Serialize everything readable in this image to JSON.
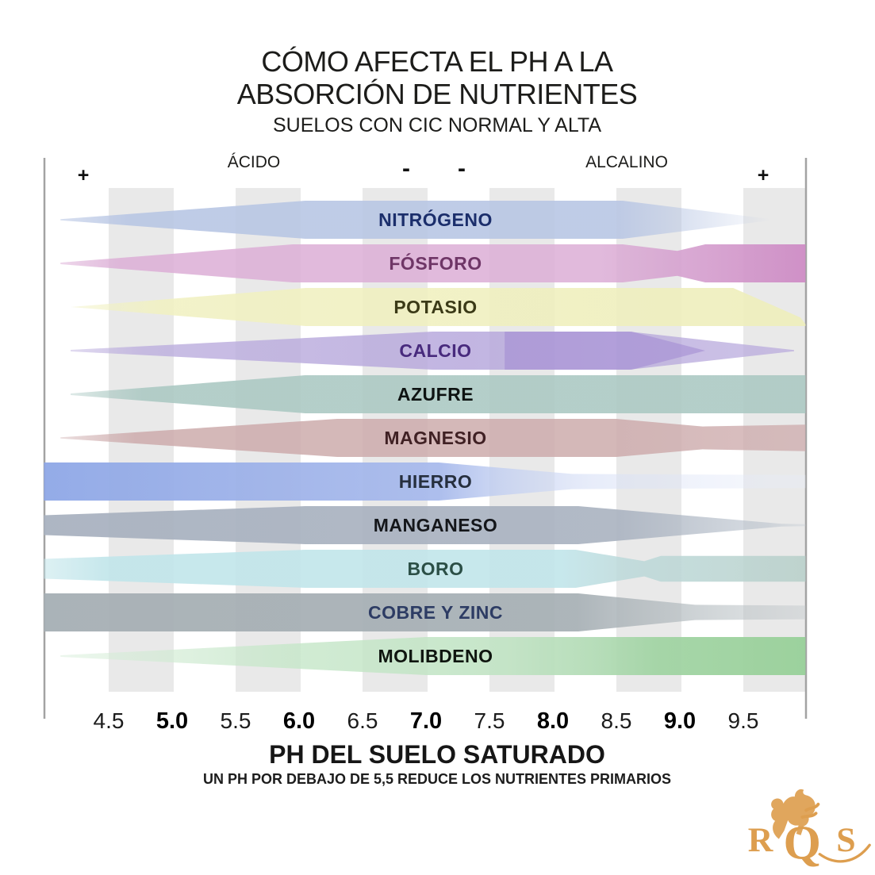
{
  "title": {
    "line1": "CÓMO AFECTA EL PH A LA",
    "line2": "ABSORCIÓN DE NUTRIENTES"
  },
  "subtitle": "SUELOS CON CIC NORMAL Y ALTA",
  "header": {
    "acid_label": "ÁCIDO",
    "alkaline_label": "ALCALINO",
    "plus_left": "+",
    "plus_right": "+",
    "minus_left": "-",
    "minus_right": "-"
  },
  "x_axis": {
    "label": "PH DEL SUELO SATURADO",
    "note": "UN PH POR DEBAJO DE 5,5 REDUCE LOS NUTRIENTES PRIMARIOS",
    "ticks": [
      {
        "label": "4.5",
        "bold": false
      },
      {
        "label": "5.0",
        "bold": true
      },
      {
        "label": "5.5",
        "bold": false
      },
      {
        "label": "6.0",
        "bold": true
      },
      {
        "label": "6.5",
        "bold": false
      },
      {
        "label": "7.0",
        "bold": true
      },
      {
        "label": "7.5",
        "bold": false
      },
      {
        "label": "8.0",
        "bold": true
      },
      {
        "label": "8.5",
        "bold": false
      },
      {
        "label": "9.0",
        "bold": true
      },
      {
        "label": "9.5",
        "bold": false
      }
    ]
  },
  "logo": {
    "letters": [
      "R",
      "Q",
      "S"
    ],
    "color": "#dd9e4f"
  },
  "chart_data": {
    "type": "area",
    "title": "CÓMO AFECTA EL PH A LA ABSORCIÓN DE NUTRIENTES",
    "subtitle": "SUELOS CON CIC NORMAL Y ALTA",
    "xlabel": "PH DEL SUELO SATURADO",
    "note": "UN PH POR DEBAJO DE 5,5 REDUCE LOS NUTRIENTES PRIMARIOS",
    "x_range": [
      4.0,
      10.0
    ],
    "x_tick_values": [
      4.5,
      5.0,
      5.5,
      6.0,
      6.5,
      7.0,
      7.5,
      8.0,
      8.5,
      9.0,
      9.5
    ],
    "zones": {
      "acid": "ÁCIDO",
      "alkaline": "ALCALINO"
    },
    "y_meaning": "relative nutrient absorption (band thickness), 0-1",
    "series": [
      {
        "name": "NITRÓGENO",
        "label_color": "#1b2e6b",
        "band_color": "#b8c6e4",
        "profile": [
          [
            4.12,
            0.03
          ],
          [
            6.05,
            1
          ],
          [
            8.55,
            1
          ],
          [
            9.72,
            0.03
          ]
        ],
        "gradient": [
          [
            0,
            "#b8c6e4",
            0.55
          ],
          [
            0.1,
            "#b8c6e4",
            0.9
          ],
          [
            0.78,
            "#b8c6e4",
            0.9
          ],
          [
            0.97,
            "#b8c6e4",
            0.15
          ],
          [
            1,
            "#b8c6e4",
            0
          ]
        ]
      },
      {
        "name": "FÓSFORO",
        "label_color": "#6f3667",
        "band_color": "#dcaed6",
        "profile": [
          [
            4.12,
            0.04
          ],
          [
            5.95,
            1
          ],
          [
            8.55,
            1
          ],
          [
            8.98,
            0.66
          ],
          [
            9.2,
            1
          ],
          [
            9.99,
            1
          ]
        ],
        "gradient": [
          [
            0,
            "#dcaed6",
            0.5
          ],
          [
            0.08,
            "#dcaed6",
            0.85
          ],
          [
            0.72,
            "#dcaed6",
            0.85
          ],
          [
            0.82,
            "#d6a3d0",
            0.9
          ],
          [
            1,
            "#ce8cc5",
            0.95
          ]
        ]
      },
      {
        "name": "POTASIO",
        "label_color": "#3b3a17",
        "band_color": "#f1f1c2",
        "polygon": [
          [
            4.2,
            0
          ],
          [
            6.05,
            -1
          ],
          [
            9.42,
            -1
          ],
          [
            9.95,
            0.55
          ],
          [
            9.99,
            0.9
          ],
          [
            9.99,
            1
          ],
          [
            6.05,
            1
          ]
        ],
        "gradient": [
          [
            0,
            "#f1f1c2",
            0.45
          ],
          [
            0.12,
            "#f1f1c2",
            0.88
          ],
          [
            1,
            "#eeeebb",
            0.9
          ]
        ]
      },
      {
        "name": "CALCIO",
        "label_color": "#482a7d",
        "band_color": "#bcaede",
        "profile": [
          [
            4.2,
            0.04
          ],
          [
            7.05,
            1
          ],
          [
            8.6,
            1
          ],
          [
            9.9,
            0.03
          ]
        ],
        "gradient": [
          [
            0,
            "#bcaede",
            0.45
          ],
          [
            0.1,
            "#bcaede",
            0.8
          ],
          [
            0.55,
            "#b7a8dc",
            0.85
          ],
          [
            1,
            "#b7a8dc",
            0.7
          ]
        ],
        "accents": [
          {
            "polygon": [
              [
                7.62,
                -1
              ],
              [
                8.62,
                -1
              ],
              [
                9.2,
                0
              ],
              [
                8.62,
                1
              ],
              [
                7.62,
                1
              ]
            ],
            "color": "#a188d2",
            "opacity": 0.55
          }
        ]
      },
      {
        "name": "AZUFRE",
        "label_color": "#0e1312",
        "band_color": "#aac8c2",
        "profile": [
          [
            4.2,
            0.04
          ],
          [
            6.05,
            1
          ],
          [
            9.99,
            1
          ]
        ],
        "gradient": [
          [
            0,
            "#aac8c2",
            0.4
          ],
          [
            0.1,
            "#aac8c2",
            0.88
          ],
          [
            1,
            "#aac8c2",
            0.88
          ]
        ]
      },
      {
        "name": "MAGNESIO",
        "label_color": "#402124",
        "band_color": "#cdabac",
        "profile": [
          [
            4.12,
            0.03
          ],
          [
            6.3,
            1
          ],
          [
            8.5,
            1
          ],
          [
            9.18,
            0.6
          ],
          [
            9.99,
            0.7
          ]
        ],
        "gradient": [
          [
            0,
            "#cdabac",
            0.4
          ],
          [
            0.1,
            "#cdabac",
            0.85
          ],
          [
            0.75,
            "#cdabac",
            0.85
          ],
          [
            1,
            "#cdabac",
            0.75
          ]
        ]
      },
      {
        "name": "HIERRO",
        "label_color": "#262f3e",
        "band_color": "#9fb3e9",
        "profile": [
          [
            3.99,
            1
          ],
          [
            7.1,
            1
          ],
          [
            8.15,
            0.4
          ],
          [
            9.99,
            0.34
          ]
        ],
        "gradient": [
          [
            0,
            "#8ea7e6",
            0.95
          ],
          [
            0.3,
            "#9fb3e9",
            0.95
          ],
          [
            0.52,
            "#a9bbec",
            0.95
          ],
          [
            0.6,
            "#c2cff1",
            0.8
          ],
          [
            0.72,
            "#d8e0f6",
            0.6
          ],
          [
            1,
            "#e8edf9",
            0.35
          ]
        ]
      },
      {
        "name": "MANGANESO",
        "label_color": "#14161a",
        "band_color": "#a9b2c0",
        "profile": [
          [
            3.99,
            0.52
          ],
          [
            6.05,
            1
          ],
          [
            8.2,
            1
          ],
          [
            9.8,
            0.07
          ],
          [
            9.99,
            0.05
          ]
        ],
        "gradient": [
          [
            0,
            "#a9b2c0",
            0.95
          ],
          [
            0.75,
            "#a9b2c0",
            0.9
          ],
          [
            0.95,
            "#b6bfca",
            0.55
          ],
          [
            1,
            "#c4ccd4",
            0.35
          ]
        ]
      },
      {
        "name": "BORO",
        "label_color": "#2b4f46",
        "band_color": "#c1e5ea",
        "profile": [
          [
            3.99,
            0.52
          ],
          [
            6.05,
            1
          ],
          [
            8.18,
            1
          ],
          [
            8.72,
            0.4
          ],
          [
            8.85,
            0.68
          ],
          [
            9.99,
            0.68
          ]
        ],
        "gradient": [
          [
            0,
            "#c1e5ea",
            0.55
          ],
          [
            0.08,
            "#c1e5ea",
            0.9
          ],
          [
            0.68,
            "#c1e5ea",
            0.9
          ],
          [
            0.76,
            "#bcd9da",
            0.85
          ],
          [
            1,
            "#b7cfc9",
            0.85
          ]
        ]
      },
      {
        "name": "COBRE Y ZINC",
        "label_color": "#2d3c64",
        "band_color": "#a6afb4",
        "profile": [
          [
            3.99,
            1
          ],
          [
            8.2,
            1
          ],
          [
            9.12,
            0.4
          ],
          [
            9.99,
            0.36
          ]
        ],
        "gradient": [
          [
            0,
            "#a6afb4",
            0.95
          ],
          [
            0.7,
            "#a6afb4",
            0.92
          ],
          [
            0.88,
            "#b4bcc0",
            0.6
          ],
          [
            1,
            "#c2c8cb",
            0.45
          ]
        ]
      },
      {
        "name": "MOLIBDENO",
        "label_color": "#0f150f",
        "band_color": "#c2e3c4",
        "profile": [
          [
            4.12,
            0.04
          ],
          [
            7.0,
            1
          ],
          [
            9.99,
            1
          ]
        ],
        "gradient": [
          [
            0,
            "#d8eeda",
            0.5
          ],
          [
            0.3,
            "#c6e7c9",
            0.8
          ],
          [
            0.6,
            "#c0e3c3",
            0.9
          ],
          [
            0.72,
            "#b0dab3",
            0.92
          ],
          [
            0.8,
            "#a2d4a4",
            0.95
          ],
          [
            1,
            "#98d099",
            0.95
          ]
        ]
      }
    ]
  }
}
